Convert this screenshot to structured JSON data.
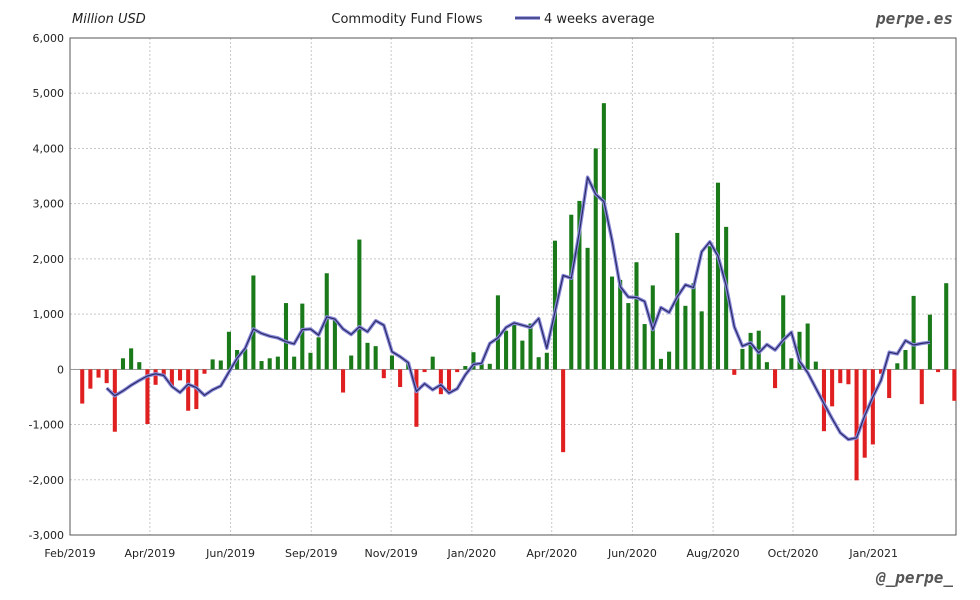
{
  "brand": {
    "site": "perpe.es",
    "handle": "@_perpe_"
  },
  "colors": {
    "positive": "#1a7a1a",
    "negative": "#e02020",
    "line_outer": "#8a8ad8",
    "line_inner": "#2a2a6a"
  },
  "chart_data": {
    "type": "bar",
    "title": "Commodity Fund Flows",
    "ylabel": "Million USD",
    "xlabel": "",
    "ylim": [
      -3000,
      6000
    ],
    "yticks": [
      6000,
      5000,
      4000,
      3000,
      2000,
      1000,
      0,
      -1000,
      -2000,
      -3000
    ],
    "ytick_labels": [
      "6,000",
      "5,000",
      "4,000",
      "3,000",
      "2,000",
      "1,000",
      "0",
      "-1,000",
      "-2,000",
      "-3,000"
    ],
    "grid": true,
    "legend": "top",
    "x_index_range": [
      -1.5,
      107.2
    ],
    "xtick_positions": [
      -1.5,
      8.3,
      18.2,
      28.1,
      37.9,
      47.8,
      57.6,
      67.5,
      77.4,
      87.2,
      97.1
    ],
    "xtick_labels": [
      "Feb/2019",
      "Apr/2019",
      "Jun/2019",
      "Sep/2019",
      "Nov/2019",
      "Jan/2020",
      "Apr/2020",
      "Jun/2020",
      "Aug/2020",
      "Oct/2020",
      "Jan/2021"
    ],
    "series": [
      {
        "name": "",
        "kind": "bar",
        "values": [
          -620,
          -350,
          -150,
          -250,
          -1130,
          200,
          380,
          130,
          -990,
          -280,
          -100,
          -300,
          -200,
          -750,
          -720,
          -80,
          180,
          160,
          680,
          350,
          370,
          1700,
          150,
          200,
          230,
          1200,
          230,
          1190,
          300,
          580,
          1740,
          920,
          -420,
          250,
          2350,
          480,
          420,
          -160,
          250,
          -320,
          120,
          -1040,
          -50,
          230,
          -450,
          -440,
          -50,
          60,
          310,
          100,
          100,
          1340,
          700,
          820,
          520,
          830,
          220,
          300,
          2330,
          -1500,
          2800,
          3050,
          2200,
          4000,
          4820,
          1680,
          1620,
          1200,
          1940,
          820,
          1520,
          190,
          320,
          2470,
          1150,
          1560,
          1050,
          2230,
          3380,
          2580,
          -100,
          370,
          660,
          700,
          130,
          -340,
          1340,
          200,
          680,
          830,
          140,
          -1120,
          -670,
          -250,
          -270,
          -2010,
          -1600,
          -1360,
          -80,
          -520,
          110,
          350,
          1330,
          -630,
          990,
          -50,
          1560,
          -570
        ]
      },
      {
        "name": "4 weeks average",
        "kind": "line",
        "start_index": 3,
        "values": [
          -340,
          -480,
          -390,
          -290,
          -200,
          -120,
          -80,
          -110,
          -310,
          -420,
          -270,
          -330,
          -470,
          -370,
          -300,
          -50,
          200,
          380,
          730,
          650,
          600,
          570,
          500,
          460,
          720,
          730,
          620,
          950,
          910,
          730,
          630,
          770,
          680,
          880,
          800,
          320,
          230,
          120,
          -400,
          -260,
          -370,
          -280,
          -430,
          -350,
          -100,
          90,
          110,
          470,
          570,
          760,
          840,
          800,
          760,
          920,
          380,
          1040,
          1700,
          1650,
          2490,
          3480,
          3170,
          3040,
          2340,
          1500,
          1310,
          1300,
          1230,
          720,
          1120,
          1030,
          1310,
          1530,
          1480,
          2130,
          2310,
          2050,
          1520,
          770,
          420,
          480,
          300,
          450,
          350,
          530,
          670,
          150,
          -60,
          -340,
          -620,
          -890,
          -1150,
          -1270,
          -1240,
          -840,
          -500,
          -200,
          310,
          280,
          520,
          440,
          470,
          490
        ]
      }
    ]
  }
}
